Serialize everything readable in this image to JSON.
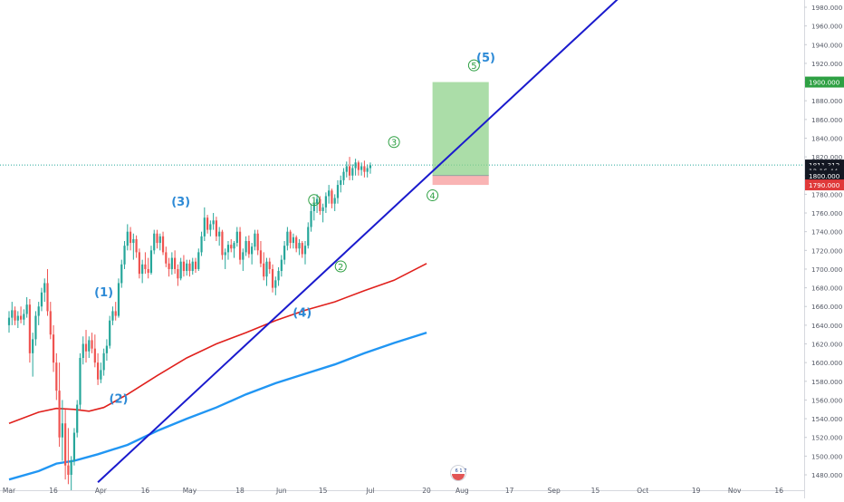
{
  "chart_data": {
    "type": "candlestick",
    "symbol_badge": "6 1 7",
    "colors": {
      "up": "#26a69a",
      "down": "#ef5350",
      "trendline": "#1a1acd",
      "ma_fast": "#e0201c",
      "ma_slow": "#2196f3",
      "wave_major": "#2d8ad6",
      "wave_minor": "#2ea043",
      "target_zone": "#8fd18b",
      "stop_zone": "#f7a1a1",
      "price_tag": "#131722",
      "target_tag": "#2ea043",
      "stop_tag": "#e03a3a",
      "axis_text": "#555a66",
      "grid_line": "#26a69a"
    },
    "y_axis": {
      "min": 1470,
      "max": 1990,
      "ticks": [
        1480,
        1500,
        1520,
        1540,
        1560,
        1580,
        1600,
        1620,
        1640,
        1660,
        1680,
        1700,
        1720,
        1740,
        1760,
        1780,
        1800,
        1820,
        1840,
        1860,
        1880,
        1900,
        1920,
        1940,
        1960,
        1980
      ],
      "decimals": 3
    },
    "x_axis": {
      "labels": [
        {
          "label": "Mar",
          "day": 0
        },
        {
          "label": "16",
          "day": 15
        },
        {
          "label": "Apr",
          "day": 31
        },
        {
          "label": "16",
          "day": 46
        },
        {
          "label": "May",
          "day": 61
        },
        {
          "label": "18",
          "day": 78
        },
        {
          "label": "Jun",
          "day": 92
        },
        {
          "label": "15",
          "day": 106
        },
        {
          "label": "Jul",
          "day": 122
        },
        {
          "label": "20",
          "day": 141
        },
        {
          "label": "Aug",
          "day": 153
        },
        {
          "label": "17",
          "day": 169
        },
        {
          "label": "Sep",
          "day": 184
        },
        {
          "label": "15",
          "day": 198
        },
        {
          "label": "Oct",
          "day": 214
        },
        {
          "label": "19",
          "day": 232
        },
        {
          "label": "Nov",
          "day": 245
        },
        {
          "label": "16",
          "day": 260
        }
      ]
    },
    "price_tags": [
      {
        "label": "1900.000",
        "price": 1900,
        "kind": "target"
      },
      {
        "label": "1811.312",
        "price": 1811.312,
        "kind": "last"
      },
      {
        "label": "12:16:44",
        "price": 1805.3,
        "kind": "countdown"
      },
      {
        "label": "1800.000",
        "price": 1800,
        "kind": "entry"
      },
      {
        "label": "1790.000",
        "price": 1790,
        "kind": "stop"
      }
    ],
    "last_price": 1811.312,
    "position_box": {
      "day_start": 143,
      "day_end": 162,
      "target": 1900,
      "entry": 1800,
      "stop": 1790
    },
    "trendline": {
      "p1": {
        "day": 30,
        "price": 1472
      },
      "p2": {
        "day": 206,
        "price": 1990
      }
    },
    "moving_averages": [
      {
        "name": "MA fast",
        "points": [
          [
            0,
            1535
          ],
          [
            10,
            1547
          ],
          [
            16,
            1551
          ],
          [
            22,
            1550
          ],
          [
            27,
            1548
          ],
          [
            32,
            1552
          ],
          [
            40,
            1566
          ],
          [
            50,
            1586
          ],
          [
            60,
            1605
          ],
          [
            70,
            1620
          ],
          [
            80,
            1632
          ],
          [
            90,
            1645
          ],
          [
            100,
            1656
          ],
          [
            110,
            1665
          ],
          [
            120,
            1677
          ],
          [
            130,
            1688
          ],
          [
            141,
            1706
          ]
        ]
      },
      {
        "name": "MA slow",
        "points": [
          [
            0,
            1475
          ],
          [
            10,
            1484
          ],
          [
            16,
            1492
          ],
          [
            22,
            1495
          ],
          [
            30,
            1502
          ],
          [
            40,
            1512
          ],
          [
            50,
            1527
          ],
          [
            60,
            1540
          ],
          [
            70,
            1552
          ],
          [
            80,
            1566
          ],
          [
            90,
            1578
          ],
          [
            100,
            1588
          ],
          [
            110,
            1598
          ],
          [
            120,
            1610
          ],
          [
            130,
            1621
          ],
          [
            141,
            1632
          ]
        ]
      }
    ],
    "wave_labels": [
      {
        "text": "(1)",
        "day": 32,
        "price": 1671,
        "style": "major"
      },
      {
        "text": "(2)",
        "day": 37,
        "price": 1557,
        "style": "major"
      },
      {
        "text": "(3)",
        "day": 58,
        "price": 1768,
        "style": "major"
      },
      {
        "text": "(4)",
        "day": 99,
        "price": 1649,
        "style": "major"
      },
      {
        "text": "(5)",
        "day": 161,
        "price": 1922,
        "style": "major"
      },
      {
        "text": "1",
        "day": 103,
        "price": 1770,
        "style": "minor"
      },
      {
        "text": "2",
        "day": 112,
        "price": 1699,
        "style": "minor"
      },
      {
        "text": "3",
        "day": 130,
        "price": 1832,
        "style": "minor"
      },
      {
        "text": "4",
        "day": 143,
        "price": 1775,
        "style": "minor"
      },
      {
        "text": "5",
        "day": 157,
        "price": 1914,
        "style": "minor"
      }
    ],
    "candles": [
      [
        0,
        1640,
        1655,
        1632,
        1648
      ],
      [
        1,
        1648,
        1665,
        1640,
        1656
      ],
      [
        2,
        1656,
        1660,
        1640,
        1645
      ],
      [
        3,
        1645,
        1655,
        1637,
        1650
      ],
      [
        4,
        1650,
        1660,
        1642,
        1646
      ],
      [
        5,
        1646,
        1657,
        1640,
        1652
      ],
      [
        6,
        1652,
        1670,
        1648,
        1662
      ],
      [
        7,
        1662,
        1668,
        1600,
        1610
      ],
      [
        8,
        1610,
        1632,
        1585,
        1625
      ],
      [
        9,
        1625,
        1655,
        1618,
        1650
      ],
      [
        10,
        1650,
        1665,
        1640,
        1660
      ],
      [
        11,
        1660,
        1680,
        1655,
        1675
      ],
      [
        12,
        1675,
        1690,
        1665,
        1685
      ],
      [
        13,
        1685,
        1700,
        1650,
        1655
      ],
      [
        14,
        1655,
        1665,
        1625,
        1630
      ],
      [
        15,
        1630,
        1640,
        1590,
        1600
      ],
      [
        16,
        1600,
        1610,
        1560,
        1570
      ],
      [
        17,
        1570,
        1600,
        1510,
        1520
      ],
      [
        18,
        1520,
        1560,
        1495,
        1535
      ],
      [
        19,
        1535,
        1550,
        1475,
        1490
      ],
      [
        20,
        1490,
        1530,
        1470,
        1480
      ],
      [
        21,
        1480,
        1500,
        1460,
        1495
      ],
      [
        22,
        1495,
        1530,
        1490,
        1525
      ],
      [
        23,
        1525,
        1560,
        1520,
        1555
      ],
      [
        24,
        1555,
        1610,
        1550,
        1605
      ],
      [
        25,
        1605,
        1628,
        1598,
        1620
      ],
      [
        26,
        1620,
        1635,
        1600,
        1612
      ],
      [
        27,
        1612,
        1628,
        1605,
        1624
      ],
      [
        28,
        1624,
        1632,
        1610,
        1615
      ],
      [
        29,
        1615,
        1630,
        1595,
        1600
      ],
      [
        30,
        1600,
        1610,
        1576,
        1582
      ],
      [
        31,
        1582,
        1600,
        1578,
        1592
      ],
      [
        32,
        1592,
        1615,
        1586,
        1610
      ],
      [
        33,
        1610,
        1625,
        1602,
        1618
      ],
      [
        34,
        1618,
        1650,
        1615,
        1645
      ],
      [
        35,
        1645,
        1660,
        1640,
        1655
      ],
      [
        36,
        1655,
        1665,
        1645,
        1650
      ],
      [
        37,
        1650,
        1690,
        1648,
        1685
      ],
      [
        38,
        1685,
        1710,
        1680,
        1705
      ],
      [
        39,
        1705,
        1730,
        1700,
        1725
      ],
      [
        40,
        1725,
        1748,
        1720,
        1740
      ],
      [
        41,
        1740,
        1745,
        1720,
        1728
      ],
      [
        42,
        1728,
        1738,
        1710,
        1732
      ],
      [
        43,
        1732,
        1736,
        1712,
        1718
      ],
      [
        44,
        1718,
        1722,
        1690,
        1695
      ],
      [
        45,
        1695,
        1710,
        1685,
        1705
      ],
      [
        46,
        1705,
        1718,
        1695,
        1700
      ],
      [
        47,
        1700,
        1712,
        1690,
        1696
      ],
      [
        48,
        1696,
        1725,
        1694,
        1720
      ],
      [
        49,
        1720,
        1742,
        1716,
        1738
      ],
      [
        50,
        1738,
        1742,
        1722,
        1728
      ],
      [
        51,
        1728,
        1738,
        1720,
        1735
      ],
      [
        52,
        1735,
        1740,
        1715,
        1718
      ],
      [
        53,
        1718,
        1724,
        1702,
        1706
      ],
      [
        54,
        1706,
        1712,
        1692,
        1700
      ],
      [
        55,
        1700,
        1718,
        1694,
        1712
      ],
      [
        56,
        1712,
        1720,
        1695,
        1700
      ],
      [
        57,
        1700,
        1705,
        1682,
        1690
      ],
      [
        58,
        1690,
        1712,
        1688,
        1708
      ],
      [
        59,
        1708,
        1715,
        1692,
        1698
      ],
      [
        60,
        1698,
        1710,
        1693,
        1706
      ],
      [
        61,
        1706,
        1710,
        1692,
        1698
      ],
      [
        62,
        1698,
        1712,
        1694,
        1708
      ],
      [
        63,
        1708,
        1712,
        1696,
        1700
      ],
      [
        64,
        1700,
        1722,
        1698,
        1718
      ],
      [
        65,
        1718,
        1740,
        1714,
        1735
      ],
      [
        66,
        1735,
        1766,
        1730,
        1755
      ],
      [
        67,
        1755,
        1758,
        1738,
        1742
      ],
      [
        68,
        1742,
        1752,
        1735,
        1748
      ],
      [
        69,
        1748,
        1760,
        1742,
        1752
      ],
      [
        70,
        1752,
        1756,
        1730,
        1735
      ],
      [
        71,
        1735,
        1745,
        1725,
        1740
      ],
      [
        72,
        1740,
        1742,
        1710,
        1715
      ],
      [
        73,
        1715,
        1722,
        1700,
        1718
      ],
      [
        74,
        1718,
        1730,
        1710,
        1726
      ],
      [
        75,
        1726,
        1732,
        1718,
        1722
      ],
      [
        76,
        1722,
        1730,
        1712,
        1728
      ],
      [
        77,
        1728,
        1745,
        1724,
        1740
      ],
      [
        78,
        1740,
        1745,
        1705,
        1710
      ],
      [
        79,
        1710,
        1722,
        1698,
        1718
      ],
      [
        80,
        1718,
        1735,
        1714,
        1730
      ],
      [
        81,
        1730,
        1736,
        1712,
        1716
      ],
      [
        82,
        1716,
        1728,
        1705,
        1724
      ],
      [
        83,
        1724,
        1742,
        1720,
        1738
      ],
      [
        84,
        1738,
        1742,
        1715,
        1720
      ],
      [
        85,
        1720,
        1730,
        1702,
        1706
      ],
      [
        86,
        1706,
        1718,
        1688,
        1692
      ],
      [
        87,
        1692,
        1712,
        1682,
        1708
      ],
      [
        88,
        1708,
        1712,
        1695,
        1700
      ],
      [
        89,
        1700,
        1705,
        1675,
        1680
      ],
      [
        90,
        1680,
        1692,
        1672,
        1688
      ],
      [
        91,
        1688,
        1702,
        1682,
        1698
      ],
      [
        92,
        1698,
        1715,
        1692,
        1710
      ],
      [
        93,
        1710,
        1730,
        1705,
        1725
      ],
      [
        94,
        1725,
        1745,
        1720,
        1740
      ],
      [
        95,
        1740,
        1742,
        1722,
        1728
      ],
      [
        96,
        1728,
        1738,
        1722,
        1734
      ],
      [
        97,
        1734,
        1736,
        1718,
        1722
      ],
      [
        98,
        1722,
        1732,
        1715,
        1728
      ],
      [
        99,
        1728,
        1730,
        1712,
        1716
      ],
      [
        100,
        1716,
        1730,
        1705,
        1725
      ],
      [
        101,
        1725,
        1750,
        1722,
        1745
      ],
      [
        102,
        1745,
        1770,
        1740,
        1762
      ],
      [
        103,
        1762,
        1775,
        1752,
        1770
      ],
      [
        104,
        1770,
        1780,
        1760,
        1775
      ],
      [
        105,
        1775,
        1778,
        1758,
        1762
      ],
      [
        106,
        1762,
        1770,
        1750,
        1766
      ],
      [
        107,
        1766,
        1782,
        1760,
        1778
      ],
      [
        108,
        1778,
        1790,
        1770,
        1784
      ],
      [
        109,
        1784,
        1786,
        1765,
        1770
      ],
      [
        110,
        1770,
        1780,
        1762,
        1776
      ],
      [
        111,
        1776,
        1795,
        1770,
        1790
      ],
      [
        112,
        1790,
        1800,
        1782,
        1795
      ],
      [
        113,
        1795,
        1808,
        1790,
        1804
      ],
      [
        114,
        1804,
        1815,
        1798,
        1810
      ],
      [
        115,
        1810,
        1820,
        1795,
        1800
      ],
      [
        116,
        1800,
        1812,
        1795,
        1808
      ],
      [
        117,
        1808,
        1818,
        1800,
        1814
      ],
      [
        118,
        1814,
        1816,
        1800,
        1806
      ],
      [
        119,
        1806,
        1814,
        1800,
        1810
      ],
      [
        120,
        1810,
        1816,
        1798,
        1804
      ],
      [
        121,
        1804,
        1812,
        1798,
        1808
      ],
      [
        122,
        1808,
        1814,
        1802,
        1811
      ]
    ]
  }
}
